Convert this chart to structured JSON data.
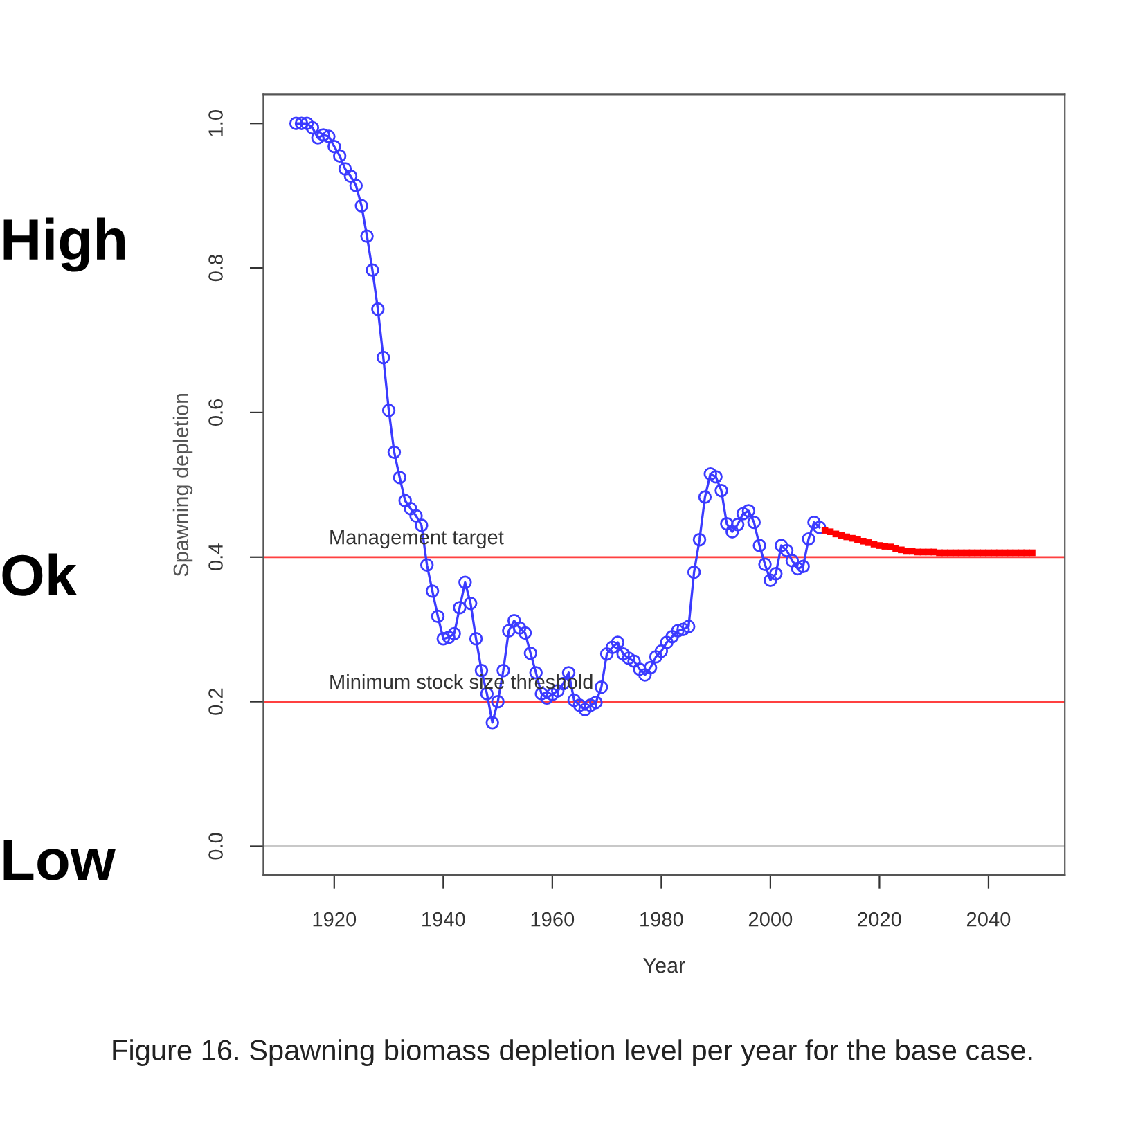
{
  "chart_data": {
    "type": "line",
    "xlabel": "Year",
    "ylabel": "Spawning depletion",
    "xlim": [
      1907,
      2054
    ],
    "ylim": [
      -0.04,
      1.04
    ],
    "xticks": [
      1920,
      1940,
      1960,
      1980,
      2000,
      2020,
      2040
    ],
    "yticks": [
      {
        "value": 0,
        "label": "0.0"
      },
      0.2,
      0.4,
      0.6,
      0.8,
      {
        "value": 1,
        "label": "1.0"
      }
    ],
    "grid": false,
    "legend": false,
    "line_style": "solid",
    "series": [
      {
        "color": "#3b3bff",
        "marker": "circle",
        "x": [
          1913,
          1914,
          1915,
          1916,
          1917,
          1918,
          1919,
          1920,
          1921,
          1922,
          1923,
          1924,
          1925,
          1926,
          1927,
          1928,
          1929,
          1930,
          1931,
          1932,
          1933,
          1934,
          1935,
          1936,
          1937,
          1938,
          1939,
          1940,
          1941,
          1942,
          1943,
          1944,
          1945,
          1946,
          1947,
          1948,
          1949,
          1950,
          1951,
          1952,
          1953,
          1954,
          1955,
          1956,
          1957,
          1958,
          1959,
          1960,
          1961,
          1962,
          1963,
          1964,
          1965,
          1966,
          1967,
          1968,
          1969,
          1970,
          1971,
          1972,
          1973,
          1974,
          1975,
          1976,
          1977,
          1978,
          1979,
          1980,
          1981,
          1982,
          1983,
          1984,
          1985,
          1986,
          1987,
          1988,
          1989,
          1990,
          1991,
          1992,
          1993,
          1994,
          1995,
          1996,
          1997,
          1998,
          1999,
          2000,
          2001,
          2002,
          2003,
          2004,
          2005,
          2006,
          2007,
          2008,
          2009
        ],
        "values": [
          1.0,
          1.0,
          1.0,
          0.994,
          0.98,
          0.984,
          0.982,
          0.968,
          0.955,
          0.937,
          0.927,
          0.914,
          0.886,
          0.844,
          0.797,
          0.743,
          0.676,
          0.603,
          0.545,
          0.51,
          0.478,
          0.467,
          0.457,
          0.444,
          0.389,
          0.353,
          0.318,
          0.287,
          0.289,
          0.294,
          0.33,
          0.365,
          0.336,
          0.287,
          0.243,
          0.211,
          0.171,
          0.2,
          0.243,
          0.298,
          0.312,
          0.302,
          0.295,
          0.267,
          0.24,
          0.211,
          0.205,
          0.21,
          0.215,
          0.225,
          0.24,
          0.202,
          0.195,
          0.189,
          0.195,
          0.199,
          0.22,
          0.266,
          0.275,
          0.282,
          0.266,
          0.26,
          0.256,
          0.245,
          0.237,
          0.247,
          0.262,
          0.27,
          0.282,
          0.29,
          0.298,
          0.3,
          0.304,
          0.379,
          0.424,
          0.483,
          0.515,
          0.511,
          0.492,
          0.446,
          0.435,
          0.445,
          0.46,
          0.464,
          0.448,
          0.416,
          0.39,
          0.368,
          0.377,
          0.416,
          0.409,
          0.395,
          0.384,
          0.387,
          0.425,
          0.448,
          0.441
        ]
      },
      {
        "color": "#ff0000",
        "marker": "square",
        "type": "scatter",
        "x": [
          2010,
          2011,
          2012,
          2013,
          2014,
          2015,
          2016,
          2017,
          2018,
          2019,
          2020,
          2021,
          2022,
          2023,
          2024,
          2025,
          2026,
          2027,
          2028,
          2029,
          2030,
          2031,
          2032,
          2033,
          2034,
          2035,
          2036,
          2037,
          2038,
          2039,
          2040,
          2041,
          2042,
          2043,
          2044,
          2045,
          2046,
          2047,
          2048
        ],
        "values": [
          0.437,
          0.435,
          0.432,
          0.43,
          0.428,
          0.426,
          0.424,
          0.422,
          0.42,
          0.418,
          0.416,
          0.415,
          0.414,
          0.412,
          0.41,
          0.408,
          0.408,
          0.407,
          0.407,
          0.407,
          0.407,
          0.406,
          0.406,
          0.406,
          0.406,
          0.406,
          0.406,
          0.406,
          0.406,
          0.406,
          0.406,
          0.406,
          0.406,
          0.406,
          0.406,
          0.406,
          0.406,
          0.406,
          0.406
        ]
      }
    ],
    "ref_lines": [
      {
        "axis": "y",
        "value": 0.4,
        "label": "Management target",
        "color": "#ff4040"
      },
      {
        "axis": "y",
        "value": 0.2,
        "label": "Minimum stock size threshold",
        "color": "#ff4040"
      },
      {
        "axis": "y",
        "value": 0,
        "color": "#c8c8c8"
      }
    ],
    "annotations": [
      "Figure 16. Spawning biomass depletion level per year for the base case.",
      "High",
      "Ok",
      "Low"
    ]
  }
}
